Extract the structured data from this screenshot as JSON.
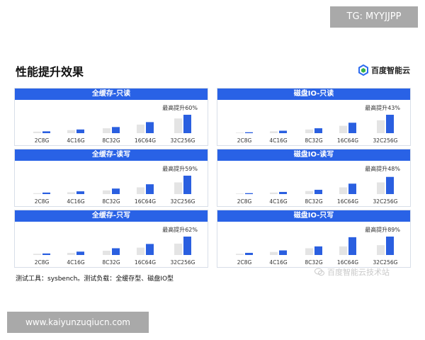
{
  "overlay": {
    "tg_badge": "TG: MYYJJPP",
    "url_banner": "www.kaiyunzuqiucn.com"
  },
  "header": {
    "title": "性能提升效果",
    "brand": "百度智能云"
  },
  "footnote": "测试工具：sysbench。测试负载：全缓存型、磁盘IO型",
  "watermark": "百度智能云技术站",
  "colors": {
    "baseline": "#e4e4e4",
    "improved": "#2a5fe0",
    "header": "#2962e6"
  },
  "chart_data": [
    {
      "type": "bar",
      "title": "全缓存-只读",
      "annotation": "最高提升60%",
      "categories": [
        "2C8G",
        "4C16G",
        "8C32G",
        "16C64G",
        "32C256G"
      ],
      "series": [
        {
          "values": [
            5,
            10,
            16,
            28,
            48
          ]
        },
        {
          "values": [
            6,
            12,
            20,
            36,
            60
          ]
        }
      ],
      "ylim": [
        0,
        60
      ]
    },
    {
      "type": "bar",
      "title": "磁盘IO-只读",
      "annotation": "最高提升43%",
      "categories": [
        "2C8G",
        "4C16G",
        "8C32G",
        "16C64G",
        "32C256G"
      ],
      "series": [
        {
          "values": [
            2,
            6,
            12,
            24,
            42
          ]
        },
        {
          "values": [
            3,
            8,
            16,
            34,
            60
          ]
        }
      ],
      "ylim": [
        0,
        60
      ]
    },
    {
      "type": "bar",
      "title": "全缓存-读写",
      "annotation": "最高提升59%",
      "categories": [
        "2C8G",
        "4C16G",
        "8C32G",
        "16C64G",
        "32C256G"
      ],
      "series": [
        {
          "values": [
            3,
            6,
            12,
            22,
            38
          ]
        },
        {
          "values": [
            5,
            9,
            18,
            32,
            60
          ]
        }
      ],
      "ylim": [
        0,
        60
      ]
    },
    {
      "type": "bar",
      "title": "磁盘IO-读写",
      "annotation": "最高提升48%",
      "categories": [
        "2C8G",
        "4C16G",
        "8C32G",
        "16C64G",
        "32C256G"
      ],
      "series": [
        {
          "values": [
            2,
            5,
            10,
            22,
            38
          ]
        },
        {
          "values": [
            3,
            7,
            14,
            34,
            56
          ]
        }
      ],
      "ylim": [
        0,
        60
      ]
    },
    {
      "type": "bar",
      "title": "全缓存-只写",
      "annotation": "最高提升62%",
      "categories": [
        "2C8G",
        "4C16G",
        "8C32G",
        "16C64G",
        "32C256G"
      ],
      "series": [
        {
          "values": [
            4,
            7,
            14,
            24,
            37
          ]
        },
        {
          "values": [
            5,
            11,
            22,
            36,
            60
          ]
        }
      ],
      "ylim": [
        0,
        60
      ]
    },
    {
      "type": "bar",
      "title": "磁盘IO-只写",
      "annotation": "最高提升89%",
      "categories": [
        "2C8G",
        "4C16G",
        "8C32G",
        "16C64G",
        "32C256G"
      ],
      "series": [
        {
          "values": [
            4,
            10,
            22,
            28,
            32
          ]
        },
        {
          "values": [
            7,
            15,
            28,
            58,
            60
          ]
        }
      ],
      "ylim": [
        0,
        60
      ]
    }
  ]
}
